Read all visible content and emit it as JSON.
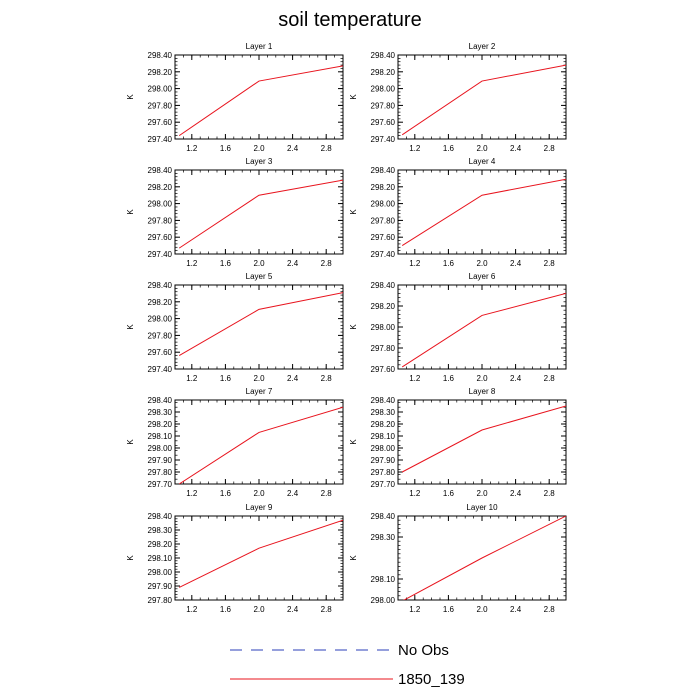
{
  "figure": {
    "title": "soil temperature"
  },
  "legend": {
    "items": [
      {
        "label": "No Obs",
        "color": "#2b3fb8",
        "style": "dashed"
      },
      {
        "label": "1850_139",
        "color": "#e8141e",
        "style": "solid"
      }
    ]
  },
  "chart_data": [
    {
      "type": "line",
      "title": "Layer 1",
      "xlabel": "",
      "ylabel": "K",
      "xlim": [
        1.0,
        3.0
      ],
      "ylim": [
        297.4,
        298.4
      ],
      "x_ticks": [
        "1.2",
        "1.6",
        "2.0",
        "2.4",
        "2.8"
      ],
      "y_ticks": [
        "297.40",
        "297.60",
        "297.80",
        "298.00",
        "298.20",
        "298.40"
      ],
      "series": [
        {
          "name": "1850_139",
          "color": "#e8141e",
          "x": [
            1.05,
            2.0,
            3.0
          ],
          "y": [
            297.44,
            298.09,
            298.27
          ]
        }
      ]
    },
    {
      "type": "line",
      "title": "Layer 2",
      "xlabel": "",
      "ylabel": "K",
      "xlim": [
        1.0,
        3.0
      ],
      "ylim": [
        297.4,
        298.4
      ],
      "x_ticks": [
        "1.2",
        "1.6",
        "2.0",
        "2.4",
        "2.8"
      ],
      "y_ticks": [
        "297.40",
        "297.60",
        "297.80",
        "298.00",
        "298.20",
        "298.40"
      ],
      "series": [
        {
          "name": "1850_139",
          "color": "#e8141e",
          "x": [
            1.05,
            2.0,
            3.0
          ],
          "y": [
            297.45,
            298.09,
            298.28
          ]
        }
      ]
    },
    {
      "type": "line",
      "title": "Layer 3",
      "xlabel": "",
      "ylabel": "K",
      "xlim": [
        1.0,
        3.0
      ],
      "ylim": [
        297.4,
        298.4
      ],
      "x_ticks": [
        "1.2",
        "1.6",
        "2.0",
        "2.4",
        "2.8"
      ],
      "y_ticks": [
        "297.40",
        "297.60",
        "297.80",
        "298.00",
        "298.20",
        "298.40"
      ],
      "series": [
        {
          "name": "1850_139",
          "color": "#e8141e",
          "x": [
            1.05,
            2.0,
            3.0
          ],
          "y": [
            297.47,
            298.1,
            298.28
          ]
        }
      ]
    },
    {
      "type": "line",
      "title": "Layer 4",
      "xlabel": "",
      "ylabel": "K",
      "xlim": [
        1.0,
        3.0
      ],
      "ylim": [
        297.4,
        298.4
      ],
      "x_ticks": [
        "1.2",
        "1.6",
        "2.0",
        "2.4",
        "2.8"
      ],
      "y_ticks": [
        "297.40",
        "297.60",
        "297.80",
        "298.00",
        "298.20",
        "298.40"
      ],
      "series": [
        {
          "name": "1850_139",
          "color": "#e8141e",
          "x": [
            1.05,
            2.0,
            3.0
          ],
          "y": [
            297.5,
            298.1,
            298.29
          ]
        }
      ]
    },
    {
      "type": "line",
      "title": "Layer 5",
      "xlabel": "",
      "ylabel": "K",
      "xlim": [
        1.0,
        3.0
      ],
      "ylim": [
        297.4,
        298.4
      ],
      "x_ticks": [
        "1.2",
        "1.6",
        "2.0",
        "2.4",
        "2.8"
      ],
      "y_ticks": [
        "297.40",
        "297.60",
        "297.80",
        "298.00",
        "298.20",
        "298.40"
      ],
      "series": [
        {
          "name": "1850_139",
          "color": "#e8141e",
          "x": [
            1.05,
            2.0,
            3.0
          ],
          "y": [
            297.56,
            298.11,
            298.31
          ]
        }
      ]
    },
    {
      "type": "line",
      "title": "Layer 6",
      "xlabel": "",
      "ylabel": "K",
      "xlim": [
        1.0,
        3.0
      ],
      "ylim": [
        297.6,
        298.4
      ],
      "x_ticks": [
        "1.2",
        "1.6",
        "2.0",
        "2.4",
        "2.8"
      ],
      "y_ticks": [
        "297.60",
        "297.80",
        "298.00",
        "298.20",
        "298.40"
      ],
      "series": [
        {
          "name": "1850_139",
          "color": "#e8141e",
          "x": [
            1.05,
            2.0,
            3.0
          ],
          "y": [
            297.62,
            298.11,
            298.32
          ]
        }
      ]
    },
    {
      "type": "line",
      "title": "Layer 7",
      "xlabel": "",
      "ylabel": "K",
      "xlim": [
        1.0,
        3.0
      ],
      "ylim": [
        297.7,
        298.4
      ],
      "x_ticks": [
        "1.2",
        "1.6",
        "2.0",
        "2.4",
        "2.8"
      ],
      "y_ticks": [
        "297.70",
        "297.80",
        "297.90",
        "298.00",
        "298.10",
        "298.20",
        "298.30",
        "298.40"
      ],
      "series": [
        {
          "name": "1850_139",
          "color": "#e8141e",
          "x": [
            1.05,
            2.0,
            3.0
          ],
          "y": [
            297.7,
            298.13,
            298.34
          ]
        }
      ]
    },
    {
      "type": "line",
      "title": "Layer 8",
      "xlabel": "",
      "ylabel": "K",
      "xlim": [
        1.0,
        3.0
      ],
      "ylim": [
        297.7,
        298.4
      ],
      "x_ticks": [
        "1.2",
        "1.6",
        "2.0",
        "2.4",
        "2.8"
      ],
      "y_ticks": [
        "297.70",
        "297.80",
        "297.90",
        "298.00",
        "298.10",
        "298.20",
        "298.30",
        "298.40"
      ],
      "series": [
        {
          "name": "1850_139",
          "color": "#e8141e",
          "x": [
            1.05,
            2.0,
            3.0
          ],
          "y": [
            297.8,
            298.15,
            298.35
          ]
        }
      ]
    },
    {
      "type": "line",
      "title": "Layer 9",
      "xlabel": "",
      "ylabel": "K",
      "xlim": [
        1.0,
        3.0
      ],
      "ylim": [
        297.8,
        298.4
      ],
      "x_ticks": [
        "1.2",
        "1.6",
        "2.0",
        "2.4",
        "2.8"
      ],
      "y_ticks": [
        "297.80",
        "297.90",
        "298.00",
        "298.10",
        "298.20",
        "298.30",
        "298.40"
      ],
      "series": [
        {
          "name": "1850_139",
          "color": "#e8141e",
          "x": [
            1.05,
            2.0,
            3.0
          ],
          "y": [
            297.89,
            298.17,
            298.37
          ]
        }
      ]
    },
    {
      "type": "line",
      "title": "Layer 10",
      "xlabel": "",
      "ylabel": "K",
      "xlim": [
        1.0,
        3.0
      ],
      "ylim": [
        298.0,
        298.4
      ],
      "x_ticks": [
        "1.2",
        "1.6",
        "2.0",
        "2.4",
        "2.8"
      ],
      "y_ticks": [
        "298.00",
        "298.10",
        "298.30",
        "298.40"
      ],
      "series": [
        {
          "name": "1850_139",
          "color": "#e8141e",
          "x": [
            1.05,
            2.0,
            3.0
          ],
          "y": [
            297.995,
            298.2,
            298.4
          ]
        }
      ]
    }
  ]
}
